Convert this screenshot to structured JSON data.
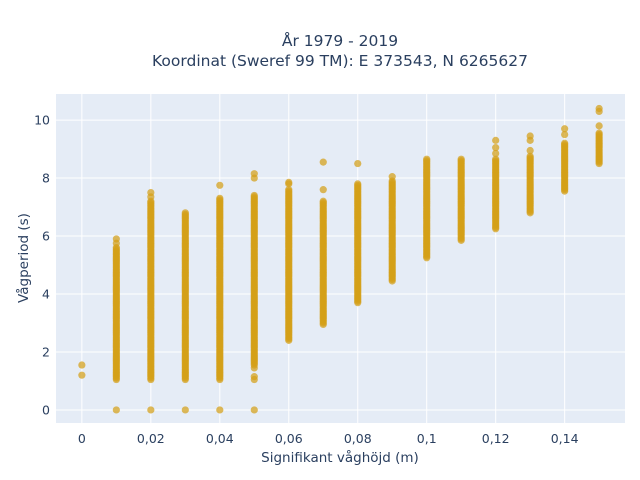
{
  "chart_data": {
    "type": "scatter",
    "title_lines": [
      "År 1979 - 2019",
      "Koordinat (Sweref 99 TM): E 373543, N 6265627"
    ],
    "xlabel": "Signifikant våghöjd (m)",
    "ylabel": "Vågperiod (s)",
    "xlim": [
      -0.0075,
      0.1575
    ],
    "ylim": [
      -0.45,
      10.9
    ],
    "x_ticks": [
      0,
      0.02,
      0.04,
      0.06,
      0.08,
      0.1,
      0.12,
      0.14
    ],
    "x_tick_labels": [
      "0",
      "0,02",
      "0,04",
      "0,06",
      "0,08",
      "0,1",
      "0,12",
      "0,14"
    ],
    "y_ticks": [
      0,
      2,
      4,
      6,
      8,
      10
    ],
    "y_tick_labels": [
      "0",
      "2",
      "4",
      "6",
      "8",
      "10"
    ],
    "grid": true,
    "marker_color": "#D4A017",
    "plot_background": "#E5ECF6",
    "columns": [
      {
        "x": 0.0,
        "range": null,
        "points": [
          1.2,
          1.55
        ]
      },
      {
        "x": 0.01,
        "range": [
          1.05,
          5.6
        ],
        "points": [
          0.0,
          5.75,
          5.9
        ]
      },
      {
        "x": 0.02,
        "range": [
          1.05,
          7.2
        ],
        "points": [
          0.0,
          7.35,
          7.5
        ]
      },
      {
        "x": 0.03,
        "range": [
          1.05,
          6.8
        ],
        "points": [
          0.0
        ]
      },
      {
        "x": 0.04,
        "range": [
          1.05,
          7.3
        ],
        "points": [
          0.0,
          7.75
        ]
      },
      {
        "x": 0.05,
        "range": [
          1.55,
          7.4
        ],
        "points": [
          0.0,
          1.05,
          1.15,
          1.45,
          8.0,
          8.15
        ]
      },
      {
        "x": 0.06,
        "range": [
          2.4,
          7.6
        ],
        "points": [
          7.8,
          7.85
        ]
      },
      {
        "x": 0.07,
        "range": [
          2.95,
          7.2
        ],
        "points": [
          7.6,
          8.55
        ]
      },
      {
        "x": 0.08,
        "range": [
          3.7,
          7.8
        ],
        "points": [
          8.5
        ]
      },
      {
        "x": 0.09,
        "range": [
          4.45,
          7.9
        ],
        "points": [
          8.05
        ]
      },
      {
        "x": 0.1,
        "range": [
          5.25,
          8.6
        ],
        "points": [
          8.65
        ]
      },
      {
        "x": 0.11,
        "range": [
          5.85,
          8.65
        ],
        "points": []
      },
      {
        "x": 0.12,
        "range": [
          6.25,
          8.65
        ],
        "points": [
          8.85,
          9.05,
          9.3
        ]
      },
      {
        "x": 0.13,
        "range": [
          6.8,
          8.75
        ],
        "points": [
          8.95,
          9.3,
          9.45
        ]
      },
      {
        "x": 0.14,
        "range": [
          7.55,
          9.2
        ],
        "points": [
          9.5,
          9.7
        ]
      },
      {
        "x": 0.15,
        "range": [
          8.5,
          9.55
        ],
        "points": [
          9.8,
          10.3,
          10.4
        ]
      }
    ]
  }
}
